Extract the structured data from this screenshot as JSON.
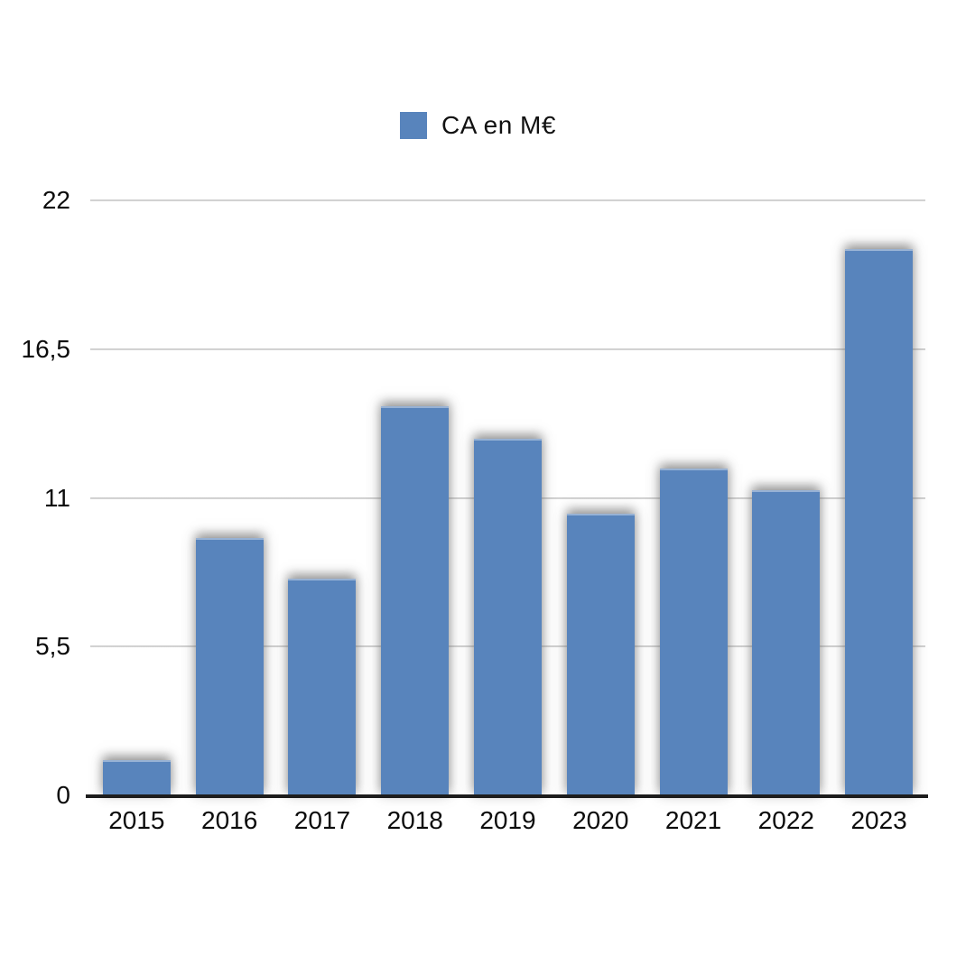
{
  "legend": {
    "label": "CA en M€",
    "swatch_color": "#5884bc"
  },
  "chart_data": {
    "type": "bar",
    "title": "",
    "xlabel": "",
    "ylabel": "",
    "categories": [
      "2015",
      "2016",
      "2017",
      "2018",
      "2019",
      "2020",
      "2021",
      "2022",
      "2023"
    ],
    "series": [
      {
        "name": "CA en M€",
        "values": [
          1.3,
          9.5,
          8.0,
          14.4,
          13.2,
          10.4,
          12.1,
          11.3,
          20.2
        ]
      }
    ],
    "ylim": [
      0,
      22
    ],
    "yticks": [
      0,
      5.5,
      11,
      16.5,
      22
    ],
    "ytick_labels": [
      "0",
      "5,5",
      "11",
      "16,5",
      "22"
    ],
    "grid": true,
    "legend_position": "top-center",
    "bar_color": "#5884bc",
    "gridline_color": "#cccccc",
    "axis_line_color": "#1d1d1d"
  }
}
